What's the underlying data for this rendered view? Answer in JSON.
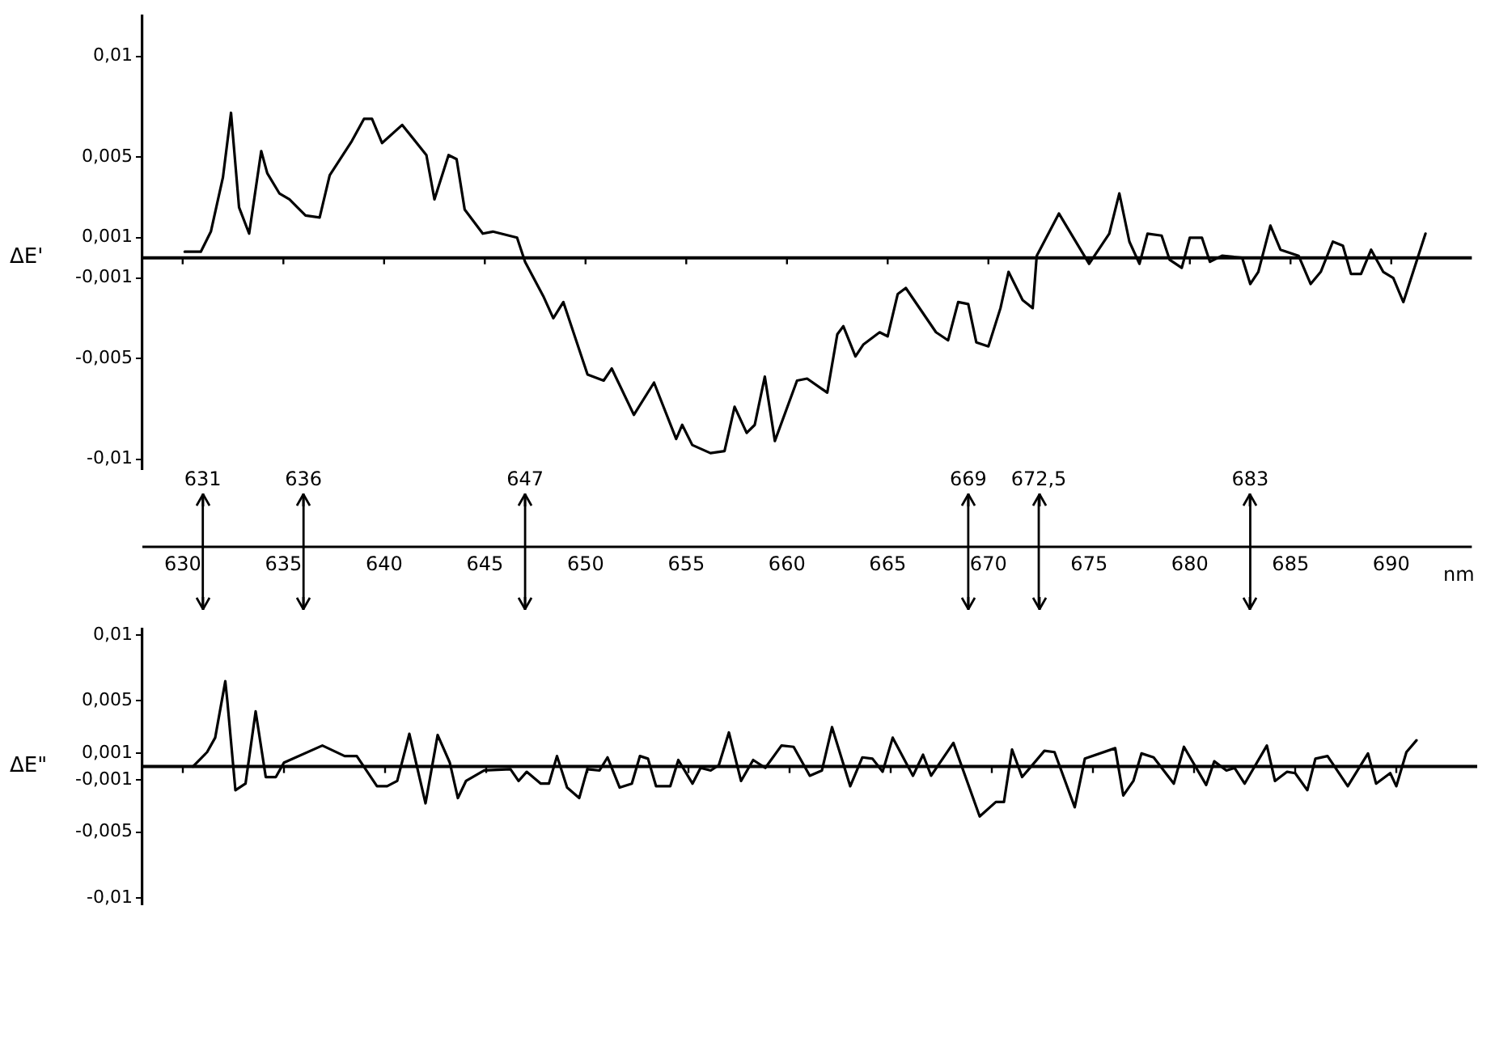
{
  "chart_data": [
    {
      "type": "line",
      "xlabel": "nm",
      "ylabel": "ΔE'",
      "xlim": [
        628,
        694
      ],
      "xticks": [
        630,
        635,
        640,
        645,
        650,
        655,
        660,
        665,
        670,
        675,
        680,
        685,
        690
      ],
      "ylim": [
        -0.0105,
        0.012
      ],
      "yticks": [
        {
          "value": 0.01,
          "label": "0,01"
        },
        {
          "value": 0.005,
          "label": "0,005"
        },
        {
          "value": 0.001,
          "label": "0,001"
        },
        {
          "value": -0.001,
          "label": "-0,001"
        },
        {
          "value": -0.005,
          "label": "-0,005"
        },
        {
          "value": -0.01,
          "label": "-0,01"
        }
      ],
      "grid": false,
      "legend": false,
      "marker": "none",
      "line_style": "solid",
      "ref_lines": [
        {
          "axis": "y",
          "value": 0
        },
        {
          "axis": "x",
          "value": 631,
          "label": "631"
        },
        {
          "axis": "x",
          "value": 636,
          "label": "636"
        },
        {
          "axis": "x",
          "value": 647,
          "label": "647"
        },
        {
          "axis": "x",
          "value": 669,
          "label": "669"
        },
        {
          "axis": "x",
          "value": 672.5,
          "label": "672,5"
        },
        {
          "axis": "x",
          "value": 683,
          "label": "683"
        }
      ],
      "series": [
        {
          "color": "#000000",
          "x": [
            630.1,
            630.9,
            631.4,
            632.0,
            632.4,
            632.8,
            633.3,
            633.9,
            634.2,
            634.8,
            635.3,
            636.1,
            636.8,
            637.3,
            638.4,
            639.0,
            639.4,
            639.9,
            640.9,
            642.1,
            642.5,
            643.2,
            643.6,
            644.0,
            644.9,
            645.4,
            646.6,
            647.0,
            647.9,
            648.4,
            648.9,
            650.1,
            650.9,
            651.3,
            652.4,
            653.4,
            654.5,
            654.8,
            655.3,
            656.2,
            656.9,
            657.4,
            658.0,
            658.4,
            658.9,
            659.4,
            660.5,
            661.0,
            662.0,
            662.5,
            662.8,
            663.4,
            663.8,
            664.6,
            665.0,
            665.5,
            665.9,
            667.4,
            668.0,
            668.5,
            669.0,
            669.4,
            670.0,
            670.6,
            671.0,
            671.7,
            672.2,
            672.4,
            673.5,
            675.0,
            676.0,
            676.5,
            677.0,
            677.5,
            677.9,
            678.6,
            679.0,
            679.6,
            680.0,
            680.6,
            681.0,
            681.6,
            682.6,
            683.0,
            683.4,
            684.0,
            684.5,
            685.4,
            686.0,
            686.5,
            687.1,
            687.6,
            688.0,
            688.5,
            689.0,
            689.6,
            690.1,
            690.6,
            691.7
          ],
          "values": [
            0.0003,
            0.0003,
            0.0013,
            0.004,
            0.0072,
            0.0025,
            0.0012,
            0.0053,
            0.0042,
            0.0032,
            0.0029,
            0.0021,
            0.002,
            0.0041,
            0.0058,
            0.0069,
            0.0069,
            0.0057,
            0.0066,
            0.0051,
            0.0029,
            0.0051,
            0.0049,
            0.0024,
            0.0012,
            0.0013,
            0.001,
            -0.0002,
            -0.0019,
            -0.003,
            -0.0022,
            -0.0058,
            -0.0061,
            -0.0055,
            -0.0078,
            -0.0062,
            -0.009,
            -0.0083,
            -0.0093,
            -0.0097,
            -0.0096,
            -0.0074,
            -0.0087,
            -0.0083,
            -0.0059,
            -0.0091,
            -0.0061,
            -0.006,
            -0.0067,
            -0.0038,
            -0.0034,
            -0.0049,
            -0.0043,
            -0.0037,
            -0.0039,
            -0.0018,
            -0.0015,
            -0.0037,
            -0.0041,
            -0.0022,
            -0.0023,
            -0.0042,
            -0.0044,
            -0.0025,
            -0.0007,
            -0.0021,
            -0.0025,
            0.0001,
            0.0022,
            -0.0003,
            0.0012,
            0.0032,
            0.0008,
            -0.0003,
            0.0012,
            0.0011,
            -0.0001,
            -0.0005,
            0.001,
            0.001,
            -0.0002,
            0.0001,
            0.0,
            -0.0013,
            -0.0007,
            0.0016,
            0.0004,
            0.0001,
            -0.0013,
            -0.0007,
            0.0008,
            0.0006,
            -0.0008,
            -0.0008,
            0.0004,
            -0.0007,
            -0.001,
            -0.0022,
            0.0012
          ]
        }
      ]
    },
    {
      "type": "line",
      "ylabel": "ΔE\"",
      "xticks": [
        630,
        635,
        640,
        645,
        650,
        655,
        660,
        665,
        670,
        675,
        680,
        685,
        690
      ],
      "ylim": [
        -0.0105,
        0.0105
      ],
      "tick_labels": "y",
      "yticks": [
        {
          "value": 0.01,
          "label": "0,01"
        },
        {
          "value": 0.005,
          "label": "0,005"
        },
        {
          "value": 0.001,
          "label": "0,001"
        },
        {
          "value": -0.001,
          "label": "-0,001"
        },
        {
          "value": -0.005,
          "label": "-0,005"
        },
        {
          "value": -0.01,
          "label": "-0,01"
        }
      ],
      "grid": false,
      "legend": false,
      "marker": "none",
      "line_style": "solid",
      "ref_lines": [
        {
          "axis": "y",
          "value": 0
        }
      ],
      "series": [
        {
          "color": "#000000",
          "x": [
            630.5,
            631.2,
            631.6,
            632.1,
            632.2,
            632.6,
            633.1,
            633.6,
            634.1,
            634.6,
            635.0,
            636.9,
            638.0,
            638.6,
            639.6,
            640.1,
            640.6,
            641.2,
            642.0,
            642.6,
            643.2,
            643.6,
            644.0,
            644.9,
            646.2,
            646.6,
            647.0,
            647.7,
            648.1,
            648.5,
            649.0,
            649.6,
            650.0,
            650.6,
            651.0,
            651.6,
            652.2,
            652.6,
            653.0,
            653.4,
            654.1,
            654.5,
            655.2,
            655.6,
            656.1,
            656.5,
            657.0,
            657.6,
            658.2,
            658.8,
            659.6,
            660.2,
            661.0,
            661.6,
            662.1,
            663.0,
            663.6,
            664.1,
            664.6,
            665.1,
            666.1,
            666.6,
            667.0,
            668.1,
            669.4,
            670.2,
            670.6,
            671.0,
            671.5,
            672.6,
            673.1,
            674.1,
            674.6,
            676.1,
            676.5,
            677.0,
            677.4,
            678.0,
            679.0,
            679.5,
            680.6,
            681.0,
            681.6,
            682.0,
            682.5,
            683.6,
            684.0,
            684.6,
            685.0,
            685.6,
            686.0,
            686.6,
            687.6,
            688.6,
            689.0,
            689.7,
            690.0,
            690.5,
            691.0
          ],
          "values": [
            0,
            0.0011,
            0.0022,
            0.0065,
            0.005,
            -0.0018,
            -0.0013,
            0.0042,
            -0.0008,
            -0.0008,
            0.0003,
            0.0016,
            0.0008,
            0.0008,
            -0.0015,
            -0.0015,
            -0.0011,
            0.0025,
            -0.0028,
            0.0024,
            0.0003,
            -0.0024,
            -0.0011,
            -0.0003,
            -0.0002,
            -0.0011,
            -0.0004,
            -0.0013,
            -0.0013,
            0.0008,
            -0.0016,
            -0.0024,
            -0.0002,
            -0.0003,
            0.0007,
            -0.0016,
            -0.0013,
            0.0008,
            0.0006,
            -0.0015,
            -0.0015,
            0.0005,
            -0.0013,
            -0.0001,
            -0.0003,
            0.0001,
            0.0026,
            -0.0011,
            0.0005,
            -0.0001,
            0.0016,
            0.0015,
            -0.0007,
            -0.0003,
            0.003,
            -0.0015,
            0.0007,
            0.0006,
            -0.0004,
            0.0022,
            -0.0007,
            0.0009,
            -0.0007,
            0.0018,
            -0.0038,
            -0.0027,
            -0.0027,
            0.0013,
            -0.0008,
            0.0012,
            0.0011,
            -0.0031,
            0.0006,
            0.0014,
            -0.0022,
            -0.0011,
            0.001,
            0.0007,
            -0.0013,
            0.0015,
            -0.0014,
            0.0004,
            -0.0003,
            -0.0001,
            -0.0013,
            0.0016,
            -0.0011,
            -0.0004,
            -0.0005,
            -0.0018,
            0.0006,
            0.0008,
            -0.0015,
            0.001,
            -0.0013,
            -0.0005,
            -0.0015,
            0.0011,
            0.002
          ]
        }
      ]
    }
  ]
}
